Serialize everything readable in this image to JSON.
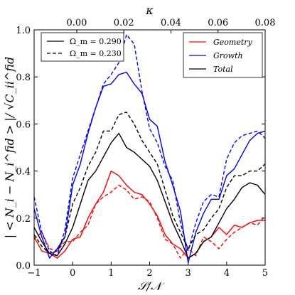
{
  "chart_data": {
    "type": "line",
    "xlabel": "𝒮/𝒩",
    "ylabel": "| < N_i − N_i^fid > |/ √C_ii^fid",
    "top_xlabel": "κ",
    "xlim": [
      -1,
      5
    ],
    "ylim": [
      0,
      1.0
    ],
    "top_xlim": [
      -0.0181,
      0.08
    ],
    "x_ticks": [
      -1,
      0,
      1,
      2,
      3,
      4,
      5
    ],
    "y_ticks": [
      0.0,
      0.2,
      0.4,
      0.6,
      0.8,
      1.0
    ],
    "top_x_ticks": [
      0.0,
      0.02,
      0.04,
      0.06,
      0.08
    ],
    "x_tick_labels": [
      "−1",
      "0",
      "1",
      "2",
      "3",
      "4",
      "5"
    ],
    "y_tick_labels": [
      "0.0",
      "0.2",
      "0.4",
      "0.6",
      "0.8",
      "1.0"
    ],
    "top_x_tick_labels": [
      "0.00",
      "0.02",
      "0.04",
      "0.06",
      "0.08"
    ],
    "grid": false,
    "legend_style": {
      "location": "top-left",
      "entries": [
        {
          "label": "Ω_m = 0.290",
          "linestyle": "solid"
        },
        {
          "label": "Ω_m = 0.230",
          "linestyle": "dashed"
        }
      ]
    },
    "legend_series": {
      "location": "top-right",
      "entries": [
        {
          "label": "Geometry",
          "color": "#ff0000"
        },
        {
          "label": "Growth",
          "color": "#0000ff"
        },
        {
          "label": "Total",
          "color": "#000000"
        }
      ]
    },
    "series": [
      {
        "name": "Geometry",
        "model": "Ω_m = 0.290",
        "color": "#ff0000",
        "linestyle": "solid",
        "x": [
          -1.0,
          -0.8,
          -0.6,
          -0.4,
          -0.2,
          0.0,
          0.2,
          0.4,
          0.6,
          0.8,
          1.0,
          1.2,
          1.4,
          1.6,
          1.8,
          2.0,
          2.2,
          2.4,
          2.6,
          2.8,
          3.0,
          3.2,
          3.4,
          3.6,
          3.8,
          4.0,
          4.2,
          4.4,
          4.6,
          4.8,
          5.0
        ],
        "y": [
          0.12,
          0.06,
          0.05,
          0.03,
          0.06,
          0.11,
          0.12,
          0.2,
          0.26,
          0.31,
          0.4,
          0.38,
          0.34,
          0.31,
          0.3,
          0.26,
          0.21,
          0.13,
          0.09,
          0.07,
          0.03,
          0.05,
          0.1,
          0.12,
          0.16,
          0.13,
          0.17,
          0.16,
          0.18,
          0.19,
          0.19
        ]
      },
      {
        "name": "Geometry",
        "model": "Ω_m = 0.230",
        "color": "#ff0000",
        "linestyle": "dashed",
        "x": [
          -1.0,
          -0.8,
          -0.6,
          -0.4,
          -0.2,
          0.0,
          0.2,
          0.4,
          0.6,
          0.8,
          1.0,
          1.2,
          1.4,
          1.6,
          1.8,
          2.0,
          2.2,
          2.4,
          2.6,
          2.8,
          3.0,
          3.2,
          3.4,
          3.6,
          3.8,
          4.0,
          4.2,
          4.4,
          4.6,
          4.8,
          5.0
        ],
        "y": [
          0.11,
          0.14,
          0.07,
          0.06,
          0.1,
          0.1,
          0.14,
          0.17,
          0.26,
          0.29,
          0.31,
          0.34,
          0.32,
          0.28,
          0.29,
          0.27,
          0.2,
          0.11,
          0.09,
          0.03,
          0.07,
          0.04,
          0.12,
          0.1,
          0.07,
          0.11,
          0.14,
          0.16,
          0.18,
          0.17,
          0.21
        ]
      },
      {
        "name": "Growth",
        "model": "Ω_m = 0.290",
        "color": "#0000ff",
        "linestyle": "solid",
        "x": [
          -1.0,
          -0.8,
          -0.6,
          -0.4,
          -0.2,
          0.0,
          0.2,
          0.4,
          0.6,
          0.8,
          1.0,
          1.2,
          1.4,
          1.6,
          1.8,
          2.0,
          2.2,
          2.4,
          2.6,
          2.8,
          3.0,
          3.2,
          3.4,
          3.6,
          3.8,
          4.0,
          4.2,
          4.4,
          4.6,
          4.8,
          5.0
        ],
        "y": [
          0.24,
          0.12,
          0.03,
          0.07,
          0.12,
          0.34,
          0.43,
          0.56,
          0.67,
          0.76,
          0.77,
          0.81,
          0.82,
          0.77,
          0.73,
          0.62,
          0.59,
          0.44,
          0.34,
          0.23,
          0.01,
          0.14,
          0.22,
          0.28,
          0.28,
          0.38,
          0.41,
          0.47,
          0.53,
          0.56,
          0.57
        ]
      },
      {
        "name": "Growth",
        "model": "Ω_m = 0.230",
        "color": "#0000ff",
        "linestyle": "dashed",
        "x": [
          -1.0,
          -0.8,
          -0.6,
          -0.4,
          -0.2,
          0.0,
          0.2,
          0.4,
          0.6,
          0.8,
          1.0,
          1.2,
          1.4,
          1.6,
          1.8,
          2.0,
          2.2,
          2.4,
          2.6,
          2.8,
          3.0,
          3.2,
          3.4,
          3.6,
          3.8,
          4.0,
          4.2,
          4.4,
          4.6,
          4.8,
          5.0
        ],
        "y": [
          0.29,
          0.14,
          0.06,
          0.04,
          0.15,
          0.37,
          0.47,
          0.57,
          0.67,
          0.77,
          0.81,
          0.86,
          0.98,
          0.94,
          0.74,
          0.58,
          0.52,
          0.42,
          0.36,
          0.18,
          0.06,
          0.18,
          0.27,
          0.3,
          0.29,
          0.45,
          0.52,
          0.55,
          0.56,
          0.57,
          0.54
        ]
      },
      {
        "name": "Total",
        "model": "Ω_m = 0.290",
        "color": "#000000",
        "linestyle": "solid",
        "x": [
          -1.0,
          -0.8,
          -0.6,
          -0.4,
          -0.2,
          0.0,
          0.2,
          0.4,
          0.6,
          0.8,
          1.0,
          1.2,
          1.4,
          1.6,
          1.8,
          2.0,
          2.2,
          2.4,
          2.6,
          2.8,
          3.0,
          3.2,
          3.4,
          3.6,
          3.8,
          4.0,
          4.2,
          4.4,
          4.6,
          4.8,
          5.0
        ],
        "y": [
          0.16,
          0.1,
          0.05,
          0.04,
          0.09,
          0.16,
          0.26,
          0.36,
          0.4,
          0.46,
          0.52,
          0.56,
          0.5,
          0.48,
          0.45,
          0.42,
          0.36,
          0.27,
          0.18,
          0.11,
          0.03,
          0.05,
          0.1,
          0.12,
          0.18,
          0.24,
          0.28,
          0.33,
          0.35,
          0.34,
          0.3
        ]
      },
      {
        "name": "Total",
        "model": "Ω_m = 0.230",
        "color": "#000000",
        "linestyle": "dashed",
        "x": [
          -1.0,
          -0.8,
          -0.6,
          -0.4,
          -0.2,
          0.0,
          0.2,
          0.4,
          0.6,
          0.8,
          1.0,
          1.2,
          1.4,
          1.6,
          1.8,
          2.0,
          2.2,
          2.4,
          2.6,
          2.8,
          3.0,
          3.2,
          3.4,
          3.6,
          3.8,
          4.0,
          4.2,
          4.4,
          4.6,
          4.8,
          5.0
        ],
        "y": [
          0.13,
          0.08,
          0.05,
          0.06,
          0.12,
          0.26,
          0.33,
          0.42,
          0.48,
          0.57,
          0.57,
          0.64,
          0.65,
          0.6,
          0.53,
          0.48,
          0.43,
          0.32,
          0.21,
          0.14,
          0.07,
          0.13,
          0.15,
          0.2,
          0.24,
          0.33,
          0.38,
          0.38,
          0.4,
          0.4,
          0.43
        ]
      }
    ]
  }
}
